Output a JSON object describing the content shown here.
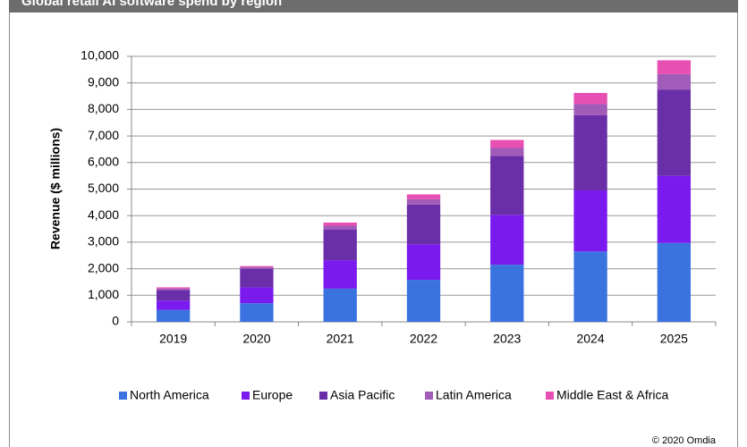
{
  "chart_data": {
    "type": "stacked-bar",
    "title": "Global retail AI software spend by region",
    "ylabel": "Revenue ($ millions)",
    "source": "© 2020 Omdia",
    "categories": [
      "2019",
      "2020",
      "2021",
      "2022",
      "2023",
      "2024",
      "2025"
    ],
    "series": [
      {
        "name": "North America",
        "color": "#3a73e0",
        "values": [
          450,
          700,
          1250,
          1580,
          2150,
          2650,
          2970
        ]
      },
      {
        "name": "Europe",
        "color": "#7a1aee",
        "values": [
          350,
          600,
          1070,
          1340,
          1880,
          2300,
          2530
        ]
      },
      {
        "name": "Asia Pacific",
        "color": "#6a2ea8",
        "values": [
          400,
          700,
          1160,
          1500,
          2220,
          2830,
          3250
        ]
      },
      {
        "name": "Latin America",
        "color": "#a05cb8",
        "values": [
          50,
          50,
          140,
          200,
          300,
          420,
          580
        ]
      },
      {
        "name": "Middle East & Africa",
        "color": "#e84fb2",
        "values": [
          50,
          50,
          120,
          180,
          300,
          420,
          520
        ]
      }
    ],
    "ylim": [
      0,
      10000
    ],
    "yticks": [
      0,
      {
        "value": 1000,
        "label": "1,000"
      },
      {
        "value": 2000,
        "label": "2,000"
      },
      {
        "value": 3000,
        "label": "3,000"
      },
      {
        "value": 4000,
        "label": "4,000"
      },
      {
        "value": 5000,
        "label": "5,000"
      },
      {
        "value": 6000,
        "label": "6,000"
      },
      {
        "value": 7000,
        "label": "7,000"
      },
      {
        "value": 8000,
        "label": "8,000"
      },
      {
        "value": 9000,
        "label": "9,000"
      },
      {
        "value": 10000,
        "label": "10,000"
      }
    ],
    "grid": true
  }
}
